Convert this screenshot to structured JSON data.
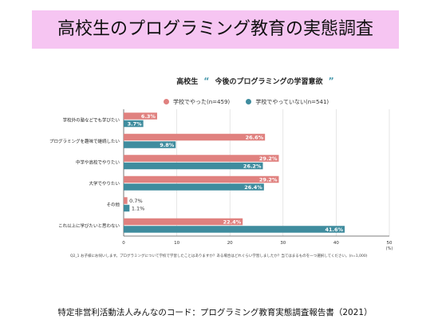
{
  "header": {
    "title": "高校生のプログラミング教育の実態調査"
  },
  "chart_data": {
    "type": "bar",
    "orientation": "horizontal",
    "title_prefix": "高校生",
    "title": "今後のプログラミングの学習意欲",
    "categories": [
      "学校外の塾などでも学びたい",
      "プログラミングを趣味で継続したい",
      "中学や高校でやりたい",
      "大学でやりたい",
      "その他",
      "これ以上に学びたいと思わない"
    ],
    "series": [
      {
        "name": "学校でやった(n=459)",
        "values": [
          6.3,
          26.6,
          29.2,
          29.2,
          0.7,
          22.4
        ],
        "color": "#e0817f"
      },
      {
        "name": "学校でやっていない(n=541)",
        "values": [
          3.7,
          9.8,
          26.2,
          26.4,
          1.1,
          41.6
        ],
        "color": "#3f8c9e"
      }
    ],
    "value_labels": [
      [
        "6.3%",
        "26.6%",
        "29.2%",
        "29.2%",
        "0.7%",
        "22.4%"
      ],
      [
        "3.7%",
        "9.8%",
        "26.2%",
        "26.4%",
        "1.1%",
        "41.6%"
      ]
    ],
    "xlim": [
      0,
      50
    ],
    "xticks": [
      0,
      10,
      20,
      30,
      40,
      50
    ],
    "xunit": "(%)",
    "grid": true,
    "legend_position": "top"
  },
  "footnote": "Q2_1 お子様にお伺いします。プログラミングについて学校で学習したことはありますか？ある場合はどれぐらい学習しましたか？当てはまるものを一つ選択してください。(n=1,000)",
  "source": "特定非営利活動法人みんなのコード：プログラミング教育実態調査報告書（2021）"
}
